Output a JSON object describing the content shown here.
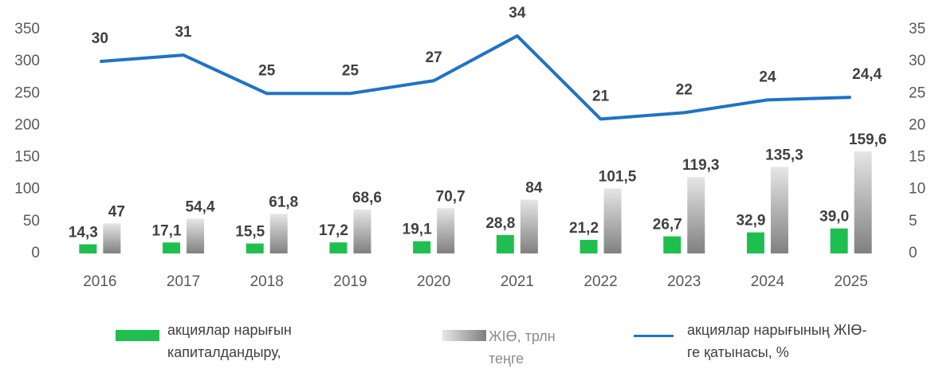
{
  "chart_data": {
    "type": "bar_line",
    "categories": [
      "2016",
      "2017",
      "2018",
      "2019",
      "2020",
      "2021",
      "2022",
      "2023",
      "2024",
      "2025"
    ],
    "series": [
      {
        "name": "акциялар нарығын капиталдандыру, трлн теңге",
        "type": "bar",
        "color": "#1fbf4f",
        "values": [
          14.3,
          17.1,
          15.5,
          17.2,
          19.1,
          28.8,
          21.2,
          26.7,
          32.9,
          39.0
        ],
        "value_labels": [
          "14,3",
          "17,1",
          "15,5",
          "17,2",
          "19,1",
          "28,8",
          "21,2",
          "26,7",
          "32,9",
          "39,0"
        ]
      },
      {
        "name": "ЖІӨ, трлн теңге",
        "type": "bar",
        "color": "#808080",
        "values": [
          47,
          54.4,
          61.8,
          68.6,
          70.7,
          84,
          101.5,
          119.3,
          135.3,
          159.6
        ],
        "value_labels": [
          "47",
          "54,4",
          "61,8",
          "68,6",
          "70,7",
          "84",
          "101,5",
          "119,3",
          "135,3",
          "159,6"
        ]
      },
      {
        "name": "акциялар нарығының ЖІӨ-ге қатынасы, %",
        "type": "line",
        "color": "#1f73c4",
        "axis": "y2",
        "values": [
          30,
          31,
          25,
          25,
          27,
          34,
          21,
          22,
          24,
          24.4
        ],
        "value_labels": [
          "30",
          "31",
          "25",
          "25",
          "27",
          "34",
          "21",
          "22",
          "24",
          "24,4"
        ]
      }
    ],
    "ylim": [
      0,
      350
    ],
    "yticks": [
      0,
      50,
      100,
      150,
      200,
      250,
      300,
      350
    ],
    "y2lim": [
      0,
      35
    ],
    "y2ticks": [
      0,
      5,
      10,
      15,
      20,
      25,
      30,
      35
    ],
    "legend": "bottom"
  }
}
